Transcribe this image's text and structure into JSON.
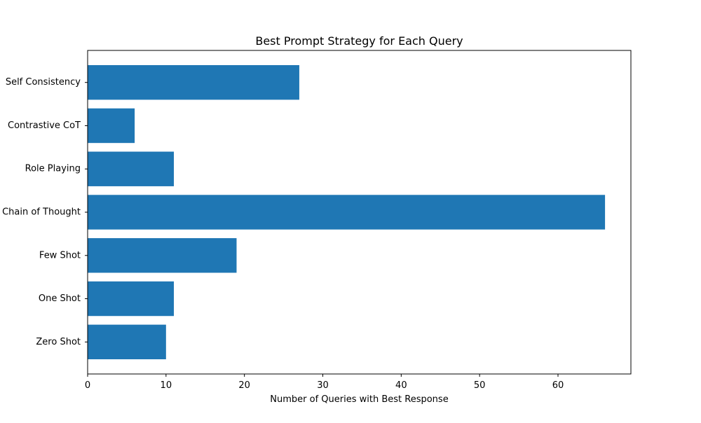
{
  "chart_data": {
    "type": "bar",
    "orientation": "horizontal",
    "title": "Best Prompt Strategy for Each Query",
    "xlabel": "Number of Queries with Best Response",
    "ylabel": "",
    "categories": [
      "Zero Shot",
      "One Shot",
      "Few Shot",
      "Chain of Thought",
      "Role Playing",
      "Contrastive CoT",
      "Self Consistency"
    ],
    "values": [
      10,
      11,
      19,
      66,
      11,
      6,
      27
    ],
    "xlim": [
      0,
      69.3
    ],
    "xticks": [
      0,
      10,
      20,
      30,
      40,
      50,
      60
    ],
    "grid": false,
    "bar_color": "#1f77b4"
  }
}
